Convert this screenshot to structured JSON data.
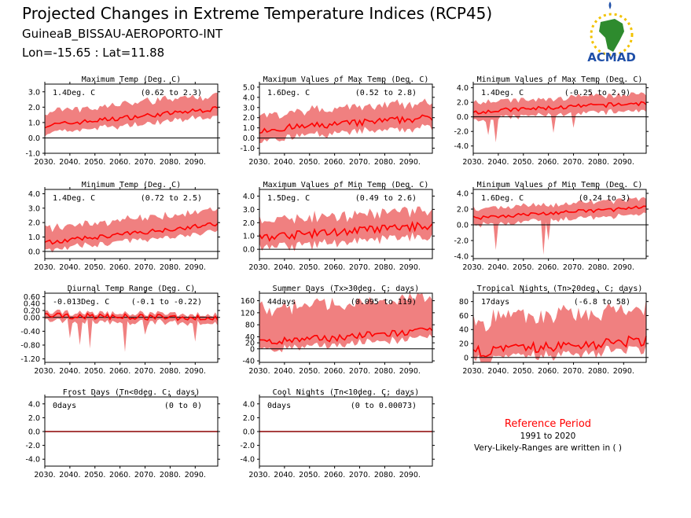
{
  "header": {
    "title": "Projected Changes in Extreme Temperature Indices (RCP45)",
    "station": "GuineaB_BISSAU-AEROPORTO-INT",
    "coords": "Lon=-15.65 : Lat=11.88"
  },
  "logo": {
    "text": "ACMAD",
    "icon": "africa-sun-logo-icon"
  },
  "reference": {
    "title": "Reference Period",
    "period": "1991 to 2020",
    "note": "Very-Likely-Ranges are written in ( )"
  },
  "colors": {
    "band": "#f08080",
    "line": "#ff0000",
    "zero": "#000000",
    "title_red": "#ff0000",
    "logo_green": "#2e8b2e",
    "logo_blue": "#1f4fa8"
  },
  "chart_data": [
    {
      "type": "area",
      "title": "Maximum Temp (Deg. C)",
      "stat_label": "1.4Deg. C",
      "range_label": "(0.62 to 2.3)",
      "x": [
        2030,
        2099
      ],
      "ylim": [
        -1.0,
        3.5
      ],
      "yticks": [
        -1.0,
        0.0,
        1.0,
        2.0,
        3.0
      ],
      "ytick_labels": [
        "-1.0",
        "0.0",
        "1.0",
        "2.0",
        "3.0"
      ],
      "median_start": 0.8,
      "median_end": 1.9,
      "band_low": 0.5,
      "band_high": 0.9,
      "noise": 0.15
    },
    {
      "type": "area",
      "title": "Maximum Values of Max Temp (Deg. C)",
      "stat_label": "1.6Deg. C",
      "range_label": "(0.52 to 2.8)",
      "x": [
        2030,
        2099
      ],
      "ylim": [
        -1.5,
        5.3
      ],
      "yticks": [
        -1.0,
        0.0,
        1.0,
        2.0,
        3.0,
        4.0,
        5.0
      ],
      "ytick_labels": [
        "-1.0",
        "0.0",
        "1.0",
        "2.0",
        "3.0",
        "4.0",
        "5.0"
      ],
      "median_start": 0.8,
      "median_end": 2.0,
      "band_low": 0.9,
      "band_high": 1.5,
      "noise": 0.35
    },
    {
      "type": "area",
      "title": "Minimum Values of Max Temp (Deg. C)",
      "stat_label": "1.4Deg. C",
      "range_label": "(-0.25 to 2.9)",
      "x": [
        2030,
        2099
      ],
      "ylim": [
        -5.0,
        4.5
      ],
      "yticks": [
        -4.0,
        -2.0,
        0.0,
        2.0,
        4.0
      ],
      "ytick_labels": [
        "-4.0",
        "-2.0",
        "0.0",
        "2.0",
        "4.0"
      ],
      "median_start": 0.7,
      "median_end": 1.9,
      "band_low": 1.0,
      "band_high": 1.3,
      "noise": 0.3,
      "dips": [
        [
          2036,
          -2.5
        ],
        [
          2039,
          -3.5
        ],
        [
          2062,
          -2.2
        ],
        [
          2070,
          -1.5
        ]
      ]
    },
    {
      "type": "area",
      "title": "Minimum Temp (Deg. C)",
      "stat_label": "1.4Deg. C",
      "range_label": "(0.72 to 2.5)",
      "x": [
        2030,
        2099
      ],
      "ylim": [
        -0.5,
        4.3
      ],
      "yticks": [
        0.0,
        1.0,
        2.0,
        3.0,
        4.0
      ],
      "ytick_labels": [
        "0.0",
        "1.0",
        "2.0",
        "3.0",
        "4.0"
      ],
      "median_start": 0.6,
      "median_end": 1.9,
      "band_low": 0.5,
      "band_high": 1.0,
      "noise": 0.15
    },
    {
      "type": "area",
      "title": "Maximum Values of Min Temp (Deg. C)",
      "stat_label": "1.5Deg. C",
      "range_label": "(0.49 to 2.6)",
      "x": [
        2030,
        2099
      ],
      "ylim": [
        -0.7,
        4.5
      ],
      "yticks": [
        0.0,
        1.0,
        2.0,
        3.0,
        4.0
      ],
      "ytick_labels": [
        "0.0",
        "1.0",
        "2.0",
        "3.0",
        "4.0"
      ],
      "median_start": 0.9,
      "median_end": 1.8,
      "band_low": 0.8,
      "band_high": 1.2,
      "noise": 0.3
    },
    {
      "type": "area",
      "title": "Minimum Values of Min Temp (Deg. C)",
      "stat_label": "1.6Deg. C",
      "range_label": "(0.24 to 3)",
      "x": [
        2030,
        2099
      ],
      "ylim": [
        -4.3,
        4.5
      ],
      "yticks": [
        -4.0,
        -2.0,
        0.0,
        2.0,
        4.0
      ],
      "ytick_labels": [
        "-4.0",
        "-2.0",
        "0.0",
        "2.0",
        "4.0"
      ],
      "median_start": 0.9,
      "median_end": 2.2,
      "band_low": 0.9,
      "band_high": 1.1,
      "noise": 0.25,
      "dips": [
        [
          2039,
          -3.2
        ],
        [
          2058,
          -3.8
        ],
        [
          2060,
          -2.0
        ]
      ]
    },
    {
      "type": "area",
      "title": "Diurnal Temp Range (Deg. C)",
      "stat_label": "-0.013Deg. C",
      "range_label": "(-0.1 to -0.22)",
      "x": [
        2030,
        2099
      ],
      "ylim": [
        -1.3,
        0.7
      ],
      "yticks": [
        -1.2,
        -0.8,
        -0.4,
        0.0,
        0.2,
        0.4,
        0.6
      ],
      "ytick_labels": [
        "-1.20",
        "-0.80",
        "-0.40",
        "0.00",
        "0.20",
        "0.40",
        "0.60"
      ],
      "median_start": 0.05,
      "median_end": -0.02,
      "band_low": 0.15,
      "band_high": 0.1,
      "noise": 0.08,
      "dips": [
        [
          2040,
          -0.6
        ],
        [
          2044,
          -0.8
        ],
        [
          2048,
          -0.9
        ],
        [
          2062,
          -1.0
        ],
        [
          2070,
          -0.5
        ],
        [
          2090,
          -0.7
        ]
      ]
    },
    {
      "type": "area",
      "title": "Summer Days (Tx>30deg. C; days)",
      "stat_label": "44days",
      "range_label": "(0.095 to 119)",
      "x": [
        2030,
        2099
      ],
      "ylim": [
        -45,
        185
      ],
      "yticks": [
        -40,
        0,
        20,
        40,
        80,
        120,
        160
      ],
      "ytick_labels": [
        "-40",
        "0",
        "20",
        "40",
        "80",
        "120",
        "160"
      ],
      "median_start": 20,
      "median_end": 60,
      "band_low": 25,
      "band_high": 110,
      "noise": 12
    },
    {
      "type": "area",
      "title": "Tropical Nights (Tn>20deg. C; days)",
      "stat_label": "17days",
      "range_label": "(-6.8 to 58)",
      "x": [
        2030,
        2099
      ],
      "ylim": [
        -7,
        92
      ],
      "yticks": [
        0,
        20,
        40,
        60,
        80
      ],
      "ytick_labels": [
        "0",
        "20",
        "40",
        "60",
        "80"
      ],
      "median_start": 8,
      "median_end": 24,
      "band_low": 12,
      "band_high": 45,
      "noise": 8
    },
    {
      "type": "area",
      "title": "Frost Days (Tn<0deg. C; days)",
      "stat_label": "0days",
      "range_label": "(0 to 0)",
      "x": [
        2030,
        2099
      ],
      "ylim": [
        -5.0,
        5.0
      ],
      "yticks": [
        -4.0,
        -2.0,
        0.0,
        2.0,
        4.0
      ],
      "ytick_labels": [
        "-4.0",
        "-2.0",
        "0.0",
        "2.0",
        "4.0"
      ],
      "median_start": 0,
      "median_end": 0,
      "band_low": 0,
      "band_high": 0,
      "noise": 0
    },
    {
      "type": "area",
      "title": "Cool Nights (Tn<10deg. C; days)",
      "stat_label": "0days",
      "range_label": "(0 to 0.00073)",
      "x": [
        2030,
        2099
      ],
      "ylim": [
        -5.0,
        5.0
      ],
      "yticks": [
        -4.0,
        -2.0,
        0.0,
        2.0,
        4.0
      ],
      "ytick_labels": [
        "-4.0",
        "-2.0",
        "0.0",
        "2.0",
        "4.0"
      ],
      "median_start": 0,
      "median_end": 0,
      "band_low": 0,
      "band_high": 0,
      "noise": 0
    }
  ],
  "x_ticks": [
    "2030.",
    "2040.",
    "2050.",
    "2060.",
    "2070.",
    "2080.",
    "2090."
  ],
  "x_tick_values": [
    2030,
    2040,
    2050,
    2060,
    2070,
    2080,
    2090
  ]
}
